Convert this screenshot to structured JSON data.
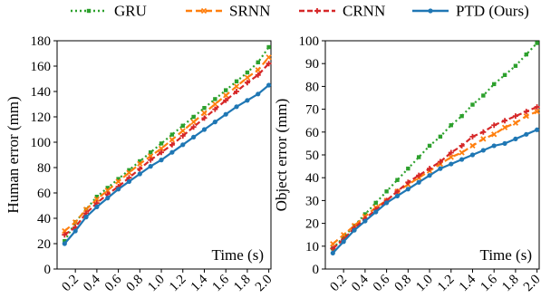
{
  "legend": [
    {
      "name": "GRU",
      "color": "#2ca02c",
      "dash": "2,3",
      "marker": "square"
    },
    {
      "name": "SRNN",
      "color": "#ff7f0e",
      "dash": "7,4",
      "marker": "x"
    },
    {
      "name": "CRNN",
      "color": "#d62728",
      "dash": "6,3",
      "marker": "plus"
    },
    {
      "name": "PTD (Ours)",
      "color": "#1f77b4",
      "dash": "",
      "marker": "circle"
    }
  ],
  "chart_data": [
    {
      "type": "line",
      "ylabel": "Human error (mm)",
      "annotation": "Time (s)",
      "ylim": [
        0,
        180
      ],
      "yticks": [
        0,
        20,
        40,
        60,
        80,
        100,
        120,
        140,
        160,
        180
      ],
      "xlim": [
        0.03,
        2.02
      ],
      "xticks": [
        "0.2",
        "0.4",
        "0.6",
        "0.8",
        "1.0",
        "1.2",
        "1.4",
        "1.6",
        "1.8",
        "2.0"
      ],
      "x": [
        0.1,
        0.2,
        0.3,
        0.4,
        0.5,
        0.6,
        0.7,
        0.8,
        0.9,
        1.0,
        1.1,
        1.2,
        1.3,
        1.4,
        1.5,
        1.6,
        1.7,
        1.8,
        1.9,
        2.0
      ],
      "series": [
        {
          "name": "GRU",
          "values": [
            22,
            37,
            47,
            57,
            64,
            71,
            78,
            85,
            92,
            99,
            106,
            113,
            120,
            127,
            134,
            141,
            148,
            155,
            163,
            175
          ]
        },
        {
          "name": "SRNN",
          "values": [
            30,
            37,
            47,
            55,
            62,
            69,
            76,
            83,
            89,
            95,
            102,
            109,
            116,
            123,
            130,
            137,
            144,
            151,
            157,
            167
          ]
        },
        {
          "name": "CRNN",
          "values": [
            27,
            33,
            44,
            52,
            59,
            65,
            72,
            79,
            86,
            92,
            98,
            105,
            112,
            119,
            126,
            133,
            140,
            147,
            153,
            162
          ]
        },
        {
          "name": "PTD (Ours)",
          "values": [
            20,
            30,
            41,
            49,
            56,
            63,
            69,
            75,
            81,
            86,
            92,
            98,
            104,
            110,
            116,
            122,
            128,
            133,
            138,
            145
          ]
        }
      ]
    },
    {
      "type": "line",
      "ylabel": "Object error (mm)",
      "annotation": "Time (s)",
      "ylim": [
        0,
        100
      ],
      "yticks": [
        0,
        10,
        20,
        30,
        40,
        50,
        60,
        70,
        80,
        90,
        100
      ],
      "xlim": [
        0.03,
        2.02
      ],
      "xticks": [
        "0.2",
        "0.4",
        "0.6",
        "0.8",
        "1.0",
        "1.2",
        "1.4",
        "1.6",
        "1.8",
        "2.0"
      ],
      "x": [
        0.1,
        0.2,
        0.3,
        0.4,
        0.5,
        0.6,
        0.7,
        0.8,
        0.9,
        1.0,
        1.1,
        1.2,
        1.3,
        1.4,
        1.5,
        1.6,
        1.7,
        1.8,
        1.9,
        2.0
      ],
      "series": [
        {
          "name": "GRU",
          "values": [
            9,
            14,
            19,
            24,
            29,
            34,
            39,
            44,
            49,
            54,
            58,
            63,
            67,
            72,
            76,
            81,
            85,
            89,
            94,
            99
          ]
        },
        {
          "name": "SRNN",
          "values": [
            11,
            15,
            19,
            23,
            27,
            30,
            34,
            37,
            40,
            43,
            46,
            49,
            51,
            54,
            57,
            59,
            62,
            64,
            67,
            69
          ]
        },
        {
          "name": "CRNN",
          "values": [
            9,
            13,
            18,
            22,
            26,
            30,
            34,
            38,
            41,
            44,
            47,
            51,
            54,
            58,
            60,
            63,
            65,
            67,
            69,
            71
          ]
        },
        {
          "name": "PTD (Ours)",
          "values": [
            7,
            12,
            17,
            21,
            25,
            29,
            32,
            35,
            38,
            41,
            44,
            46,
            48,
            50,
            52,
            54,
            55,
            57,
            59,
            61
          ]
        }
      ]
    }
  ]
}
